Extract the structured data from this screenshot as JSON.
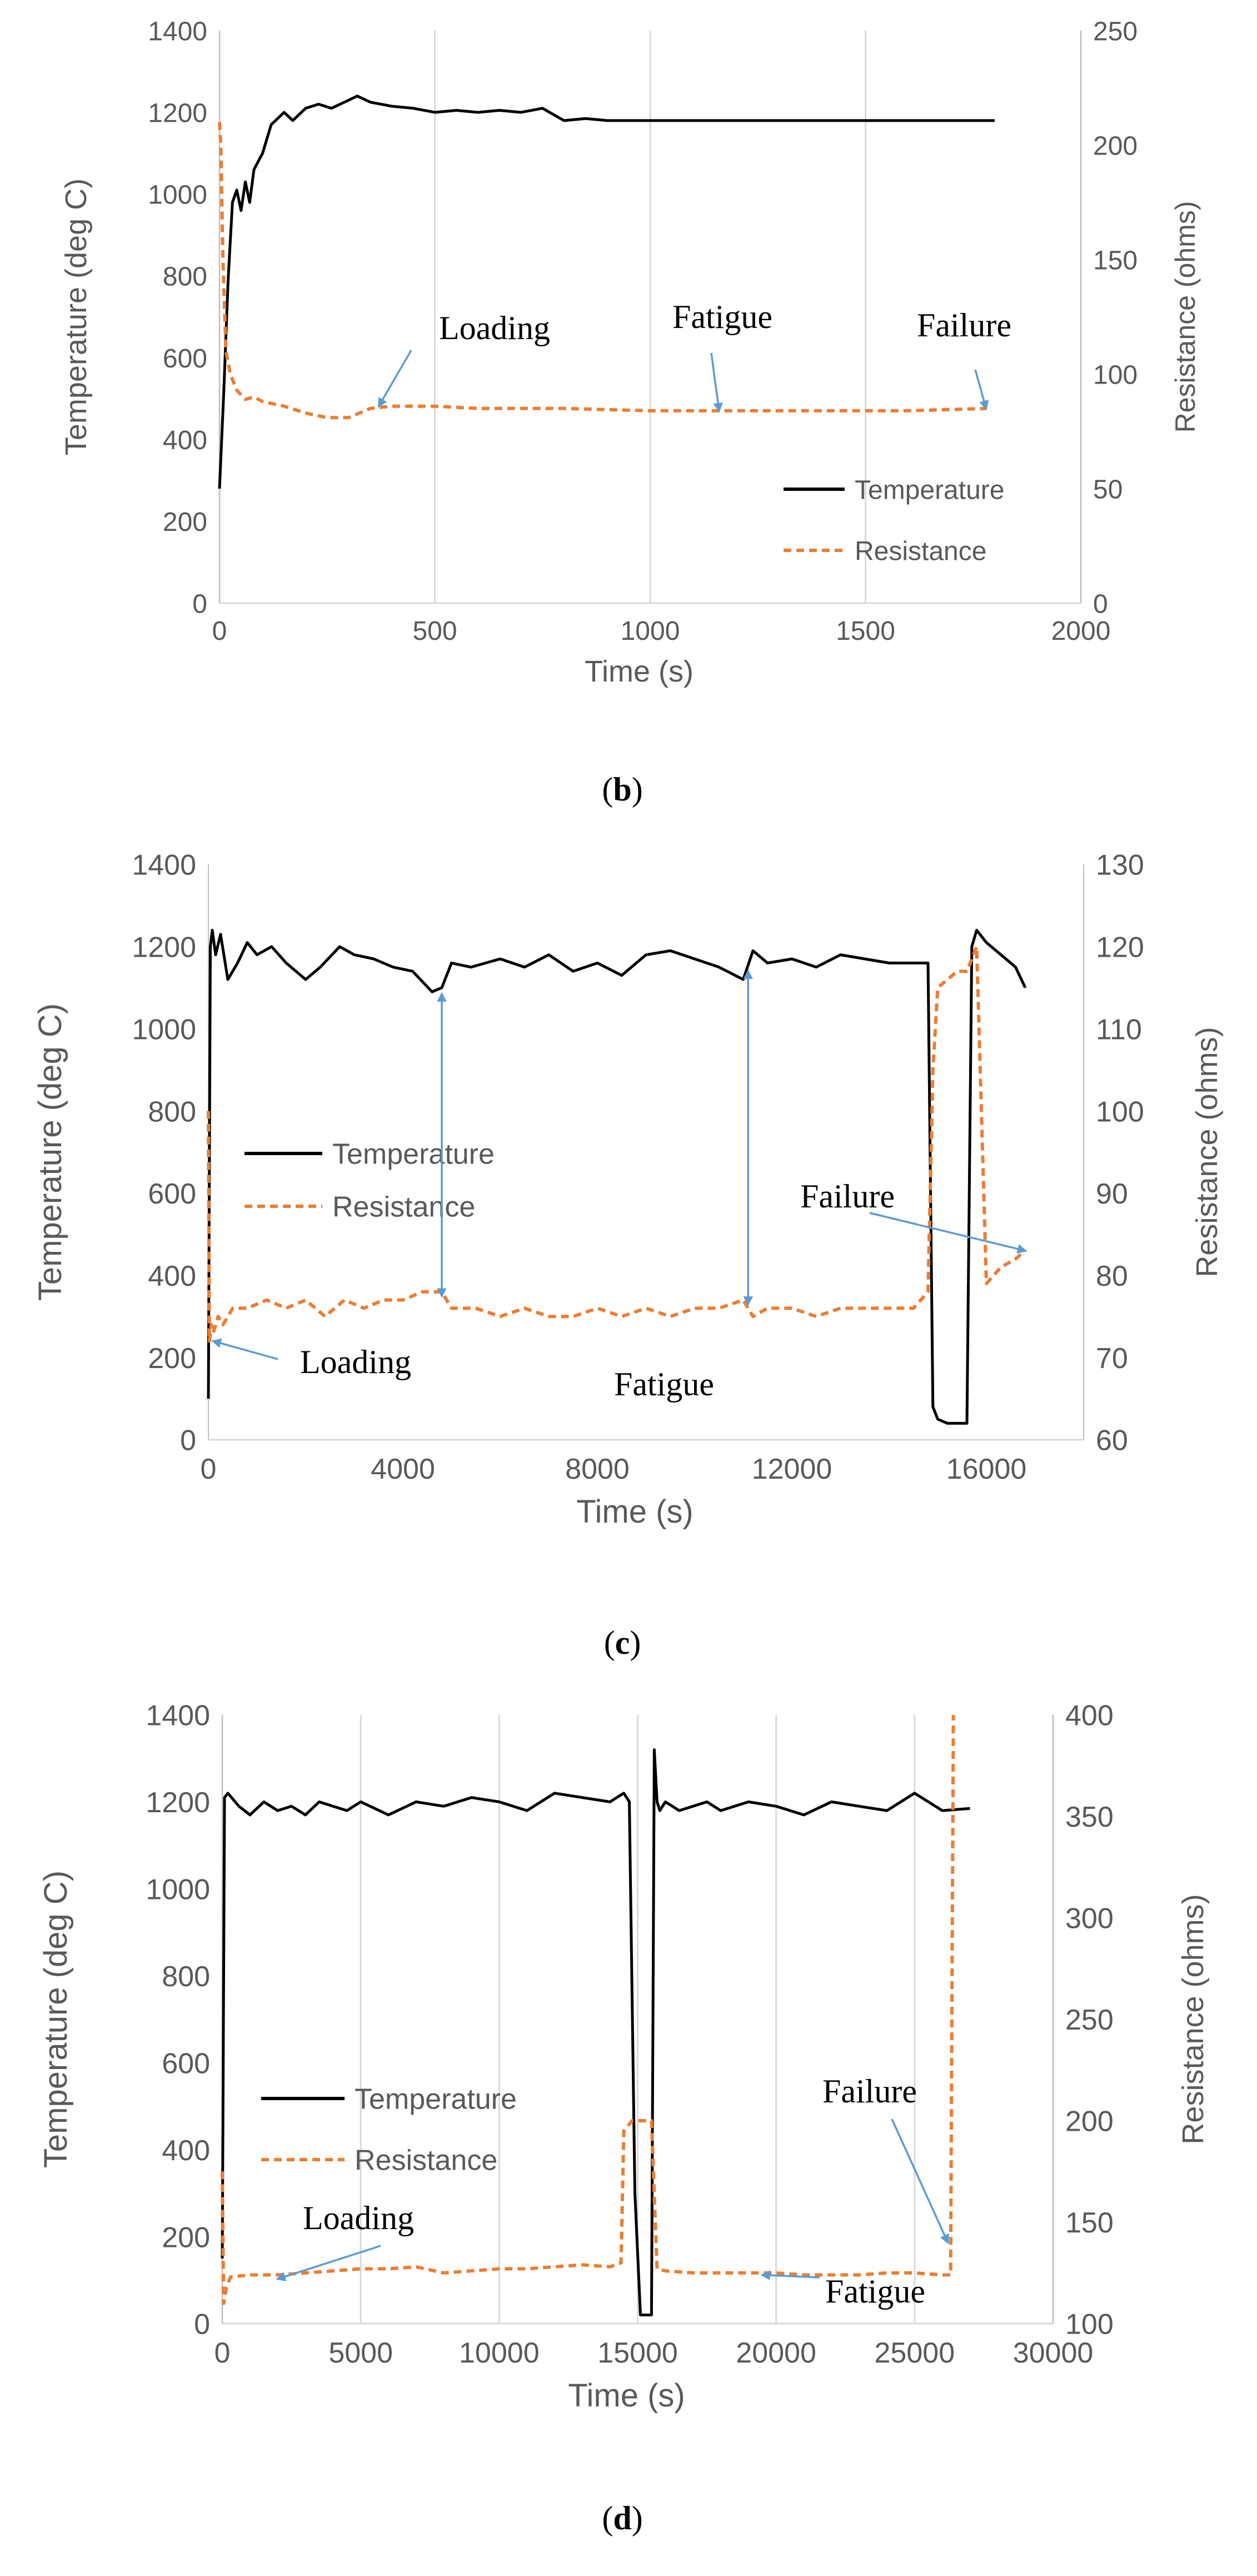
{
  "colors": {
    "temperature": "#000000",
    "resistance": "#ED7D31",
    "arrow": "#5B9BD5",
    "grid": "#D9D9D9",
    "axis_text": "#595959"
  },
  "chart_data": [
    {
      "type": "line",
      "caption": "(b)",
      "caption_letter": "b",
      "xlabel": "Time (s)",
      "ylabel": "Temperature (deg C)",
      "y2label": "Resistance (ohms)",
      "xlim": [
        0,
        2000
      ],
      "ylim": [
        0,
        1400
      ],
      "y2lim": [
        0,
        250
      ],
      "xticks": [
        0,
        500,
        1000,
        1500,
        2000
      ],
      "yticks": [
        0,
        200,
        400,
        600,
        800,
        1000,
        1200,
        1400
      ],
      "y2ticks": [
        0,
        50,
        100,
        150,
        200,
        250
      ],
      "grid": "vertical",
      "legend_position": "bottom-right",
      "series": [
        {
          "name": "Temperature",
          "axis": "left",
          "style": "solid",
          "x": [
            0,
            10,
            20,
            30,
            40,
            50,
            60,
            70,
            80,
            100,
            120,
            150,
            170,
            200,
            230,
            260,
            300,
            320,
            350,
            400,
            450,
            500,
            550,
            600,
            650,
            700,
            750,
            800,
            850,
            900,
            950,
            1000,
            1200,
            1400,
            1600,
            1800
          ],
          "y": [
            280,
            520,
            790,
            980,
            1010,
            960,
            1030,
            980,
            1060,
            1100,
            1170,
            1200,
            1180,
            1210,
            1220,
            1210,
            1230,
            1240,
            1225,
            1215,
            1210,
            1200,
            1205,
            1200,
            1205,
            1200,
            1210,
            1180,
            1185,
            1180,
            1180,
            1180,
            1180,
            1180,
            1180,
            1180
          ]
        },
        {
          "name": "Resistance",
          "axis": "right",
          "style": "dashed",
          "x": [
            0,
            3,
            8,
            15,
            25,
            40,
            60,
            80,
            100,
            150,
            200,
            250,
            300,
            350,
            400,
            500,
            600,
            800,
            1000,
            1200,
            1400,
            1600,
            1780
          ],
          "y": [
            210,
            200,
            150,
            110,
            100,
            93,
            89,
            90,
            88,
            86,
            83,
            81,
            81,
            85,
            86,
            86,
            85,
            85,
            84,
            84,
            84,
            84,
            85
          ]
        }
      ],
      "annotations": [
        {
          "text": "Loading",
          "target_x": 370,
          "target_y": 86
        },
        {
          "text": "Fatigue",
          "target_x": 1160,
          "target_y": 84
        },
        {
          "text": "Failure",
          "target_x": 1780,
          "target_y": 85
        }
      ]
    },
    {
      "type": "line",
      "caption": "(c)",
      "caption_letter": "c",
      "xlabel": "Time (s)",
      "ylabel": "Temperature (deg C)",
      "y2label": "Resistance (ohms)",
      "xlim": [
        0,
        18000
      ],
      "ylim": [
        0,
        1400
      ],
      "y2lim": [
        60,
        130
      ],
      "xticks": [
        0,
        4000,
        8000,
        12000,
        16000
      ],
      "yticks": [
        0,
        200,
        400,
        600,
        800,
        1000,
        1200,
        1400
      ],
      "y2ticks": [
        60,
        70,
        80,
        90,
        100,
        110,
        120,
        130
      ],
      "grid": "none",
      "legend_position": "middle-left",
      "series": [
        {
          "name": "Temperature",
          "axis": "left",
          "style": "solid",
          "x": [
            0,
            40,
            80,
            150,
            250,
            400,
            600,
            800,
            1000,
            1300,
            1600,
            2000,
            2300,
            2700,
            3000,
            3400,
            3800,
            4200,
            4600,
            4800,
            5000,
            5400,
            6000,
            6500,
            7000,
            7500,
            8000,
            8500,
            9000,
            9500,
            10000,
            10500,
            11000,
            11200,
            11500,
            12000,
            12500,
            13000,
            13500,
            14000,
            14500,
            14800,
            14900,
            15000,
            15200,
            15500,
            15600,
            15700,
            15800,
            16000,
            16300,
            16600,
            16800
          ],
          "y": [
            100,
            1200,
            1240,
            1180,
            1230,
            1120,
            1160,
            1210,
            1180,
            1200,
            1160,
            1120,
            1150,
            1200,
            1180,
            1170,
            1150,
            1140,
            1090,
            1100,
            1160,
            1150,
            1170,
            1150,
            1180,
            1140,
            1160,
            1130,
            1180,
            1190,
            1170,
            1150,
            1120,
            1190,
            1160,
            1170,
            1150,
            1180,
            1170,
            1160,
            1160,
            1160,
            80,
            50,
            40,
            40,
            40,
            1200,
            1240,
            1210,
            1180,
            1150,
            1100
          ]
        },
        {
          "name": "Resistance",
          "axis": "right",
          "style": "dashed",
          "x": [
            0,
            20,
            60,
            100,
            200,
            300,
            500,
            800,
            1200,
            1600,
            2000,
            2400,
            2800,
            3200,
            3600,
            4000,
            4400,
            4800,
            5000,
            5500,
            6000,
            6500,
            7000,
            7500,
            8000,
            8500,
            9000,
            9500,
            10000,
            10500,
            11000,
            11200,
            11500,
            12000,
            12500,
            13000,
            13500,
            14000,
            14500,
            14800,
            14900,
            15000,
            15200,
            15400,
            15600,
            15800,
            16000,
            16300,
            16600,
            16800
          ],
          "y": [
            100,
            72,
            74,
            73,
            75,
            74,
            76,
            76,
            77,
            76,
            77,
            75,
            77,
            76,
            77,
            77,
            78,
            78,
            76,
            76,
            75,
            76,
            75,
            75,
            76,
            75,
            76,
            75,
            76,
            76,
            77,
            75,
            76,
            76,
            75,
            76,
            76,
            76,
            76,
            78,
            105,
            115,
            116,
            117,
            117,
            120,
            79,
            81,
            82,
            83
          ]
        }
      ],
      "annotations": [
        {
          "text": "Loading",
          "target_x": 100,
          "target_y": 72
        },
        {
          "text": "Fatigue",
          "target_x": 0,
          "target_y": 0
        },
        {
          "text": "Failure",
          "target_x": 16800,
          "target_y": 83
        }
      ],
      "double_arrows": [
        {
          "x": 4800,
          "y1": 1085,
          "y2": 350
        },
        {
          "x": 11100,
          "y1": 1140,
          "y2": 330
        }
      ]
    },
    {
      "type": "line",
      "caption": "(d)",
      "caption_letter": "d",
      "xlabel": "Time (s)",
      "ylabel": "Temperature (deg C)",
      "y2label": "Resistance (ohms)",
      "xlim": [
        0,
        30000
      ],
      "ylim": [
        0,
        1400
      ],
      "y2lim": [
        100,
        400
      ],
      "xticks": [
        0,
        5000,
        10000,
        15000,
        20000,
        25000,
        30000
      ],
      "yticks": [
        0,
        200,
        400,
        600,
        800,
        1000,
        1200,
        1400
      ],
      "y2ticks": [
        100,
        150,
        200,
        250,
        300,
        350,
        400
      ],
      "grid": "vertical",
      "legend_position": "middle-left",
      "series": [
        {
          "name": "Temperature",
          "axis": "left",
          "style": "solid",
          "x": [
            0,
            80,
            200,
            600,
            1000,
            1500,
            2000,
            2500,
            3000,
            3500,
            4000,
            4500,
            5000,
            6000,
            7000,
            8000,
            9000,
            10000,
            11000,
            12000,
            13000,
            14000,
            14500,
            14700,
            14900,
            15100,
            15300,
            15500,
            15600,
            15700,
            15800,
            16000,
            16500,
            17000,
            17500,
            18000,
            19000,
            20000,
            21000,
            22000,
            23000,
            24000,
            25000,
            26000,
            27000
          ],
          "y": [
            150,
            1210,
            1220,
            1190,
            1170,
            1200,
            1180,
            1190,
            1170,
            1200,
            1190,
            1180,
            1200,
            1170,
            1200,
            1190,
            1210,
            1200,
            1180,
            1220,
            1210,
            1200,
            1220,
            1200,
            300,
            20,
            20,
            20,
            1320,
            1200,
            1180,
            1200,
            1180,
            1190,
            1200,
            1180,
            1200,
            1190,
            1170,
            1200,
            1190,
            1180,
            1220,
            1180,
            1185
          ]
        },
        {
          "name": "Resistance",
          "axis": "right",
          "style": "dashed",
          "x": [
            0,
            50,
            150,
            300,
            1000,
            2000,
            3000,
            4000,
            5000,
            6000,
            7000,
            8000,
            9000,
            10000,
            11000,
            12000,
            13000,
            14000,
            14400,
            14500,
            14800,
            15200,
            15500,
            15700,
            16000,
            17000,
            18000,
            19000,
            20000,
            21000,
            22000,
            23000,
            24000,
            25000,
            26000,
            26300,
            26400
          ],
          "y": [
            175,
            110,
            118,
            123,
            124,
            124,
            125,
            126,
            127,
            127,
            128,
            125,
            126,
            127,
            127,
            128,
            129,
            128,
            130,
            195,
            200,
            200,
            200,
            127,
            126,
            125,
            125,
            125,
            125,
            124,
            124,
            124,
            125,
            125,
            124,
            124,
            400
          ]
        }
      ],
      "annotations": [
        {
          "text": "Loading",
          "target_x": 2000,
          "target_y": 122
        },
        {
          "text": "Fatigue",
          "target_x": 19500,
          "target_y": 124
        },
        {
          "text": "Failure",
          "target_x": 26200,
          "target_y": 140
        }
      ]
    }
  ],
  "legend": {
    "temperature_label": "Temperature",
    "resistance_label": "Resistance"
  }
}
